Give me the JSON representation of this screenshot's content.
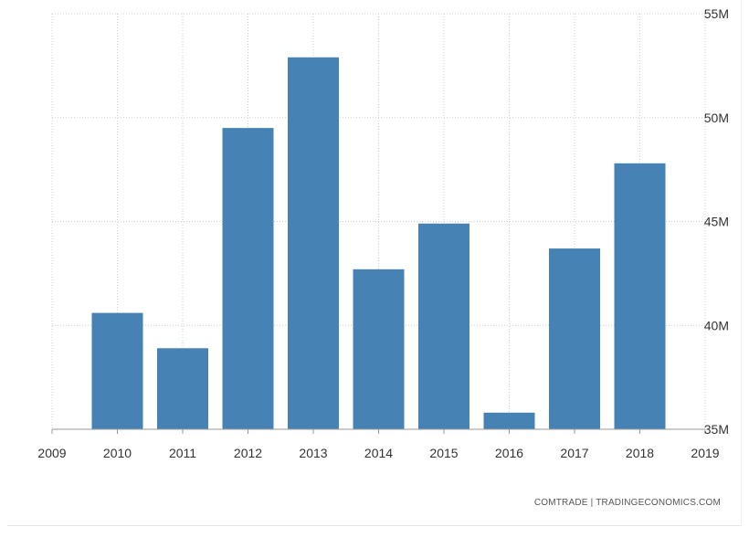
{
  "chart_data": {
    "type": "bar",
    "categories": [
      "2010",
      "2011",
      "2012",
      "2013",
      "2014",
      "2015",
      "2016",
      "2017",
      "2018"
    ],
    "values": [
      40.6,
      38.9,
      49.5,
      52.9,
      42.7,
      44.9,
      35.8,
      43.7,
      47.8
    ],
    "unit": "M",
    "x_ticks": [
      "2009",
      "2010",
      "2011",
      "2012",
      "2013",
      "2014",
      "2015",
      "2016",
      "2017",
      "2018",
      "2019"
    ],
    "y_ticks": [
      "35M",
      "40M",
      "45M",
      "50M",
      "55M"
    ],
    "ylim": [
      35,
      55
    ],
    "xlim": [
      2009,
      2019
    ],
    "grid": true,
    "y_axis_side": "right",
    "bar_color": "#4682b4",
    "title": "",
    "xlabel": "",
    "ylabel": ""
  },
  "source": "COMTRADE | TRADINGECONOMICS.COM"
}
